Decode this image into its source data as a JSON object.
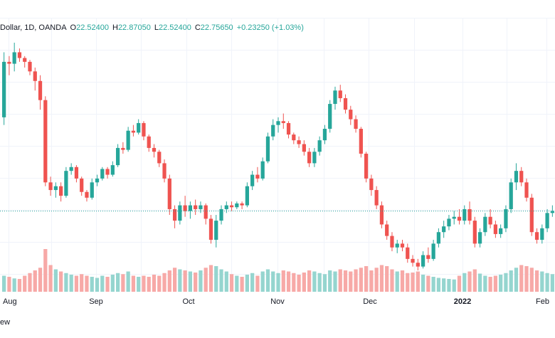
{
  "legend": {
    "symbol": "Dollar, 1D, OANDA",
    "o_label": "O",
    "o_value": "22.52400",
    "h_label": "H",
    "h_value": "22.87050",
    "l_label": "L",
    "l_value": "22.52400",
    "c_label": "C",
    "c_value": "22.75650",
    "change": "+0.23250 (+1.03%)"
  },
  "footer": {
    "text": "ew"
  },
  "colors": {
    "up": "#26a69a",
    "down": "#ef5350",
    "up_volume": "#95d5cf",
    "down_volume": "#f7a9a7",
    "grid": "#f0f3fa"
  },
  "chart_data": {
    "type": "candlestick",
    "interval": "1D",
    "x_axis_labels": [
      "Aug",
      "Sep",
      "Oct",
      "Nov",
      "Dec",
      "2022",
      "Feb"
    ],
    "current_price_line": true,
    "volume_panel": true,
    "grid": true,
    "legend_position": "top-left",
    "candles": [
      [
        96,
        130,
        92,
        125,
        30
      ],
      [
        125,
        128,
        118,
        124,
        28
      ],
      [
        124,
        135,
        120,
        130,
        25
      ],
      [
        130,
        132,
        125,
        127,
        24
      ],
      [
        127,
        128,
        122,
        125,
        30
      ],
      [
        125,
        126,
        118,
        120,
        35
      ],
      [
        120,
        122,
        110,
        115,
        40
      ],
      [
        115,
        118,
        100,
        105,
        45
      ],
      [
        105,
        107,
        60,
        62,
        80
      ],
      [
        62,
        65,
        55,
        58,
        50
      ],
      [
        58,
        62,
        54,
        60,
        42
      ],
      [
        60,
        62,
        52,
        55,
        38
      ],
      [
        55,
        70,
        54,
        68,
        35
      ],
      [
        68,
        72,
        66,
        70,
        32
      ],
      [
        70,
        71,
        62,
        64,
        30
      ],
      [
        64,
        65,
        55,
        57,
        33
      ],
      [
        57,
        58,
        52,
        54,
        30
      ],
      [
        54,
        64,
        53,
        62,
        28
      ],
      [
        62,
        66,
        60,
        64,
        26
      ],
      [
        64,
        70,
        63,
        69,
        30
      ],
      [
        69,
        70,
        64,
        66,
        28
      ],
      [
        66,
        73,
        65,
        71,
        32
      ],
      [
        71,
        82,
        70,
        80,
        35
      ],
      [
        80,
        83,
        77,
        79,
        33
      ],
      [
        79,
        91,
        78,
        89,
        38
      ],
      [
        89,
        92,
        86,
        88,
        30
      ],
      [
        88,
        95,
        87,
        93,
        28
      ],
      [
        93,
        94,
        84,
        86,
        30
      ],
      [
        86,
        87,
        78,
        80,
        28
      ],
      [
        80,
        82,
        75,
        78,
        32
      ],
      [
        78,
        79,
        70,
        72,
        30
      ],
      [
        72,
        74,
        62,
        64,
        35
      ],
      [
        64,
        66,
        45,
        48,
        40
      ],
      [
        48,
        50,
        38,
        42,
        45
      ],
      [
        42,
        52,
        40,
        50,
        42
      ],
      [
        50,
        55,
        44,
        47,
        40
      ],
      [
        47,
        52,
        43,
        50,
        38
      ],
      [
        50,
        53,
        45,
        48,
        36
      ],
      [
        48,
        52,
        46,
        50,
        40
      ],
      [
        50,
        51,
        40,
        43,
        45
      ],
      [
        43,
        45,
        30,
        32,
        50
      ],
      [
        32,
        45,
        28,
        42,
        48
      ],
      [
        42,
        50,
        40,
        48,
        42
      ],
      [
        48,
        52,
        46,
        50,
        38
      ],
      [
        50,
        52,
        47,
        49,
        33
      ],
      [
        49,
        52,
        48,
        51,
        30
      ],
      [
        51,
        52,
        48,
        50,
        28
      ],
      [
        50,
        62,
        49,
        60,
        32
      ],
      [
        60,
        68,
        58,
        66,
        35
      ],
      [
        66,
        70,
        62,
        64,
        30
      ],
      [
        64,
        75,
        63,
        73,
        38
      ],
      [
        73,
        88,
        72,
        86,
        42
      ],
      [
        86,
        95,
        84,
        92,
        38
      ],
      [
        92,
        96,
        88,
        94,
        35
      ],
      [
        94,
        98,
        90,
        93,
        40
      ],
      [
        93,
        94,
        85,
        87,
        38
      ],
      [
        87,
        88,
        82,
        84,
        35
      ],
      [
        84,
        86,
        80,
        82,
        32
      ],
      [
        82,
        84,
        76,
        78,
        36
      ],
      [
        78,
        80,
        70,
        72,
        40
      ],
      [
        72,
        80,
        70,
        78,
        38
      ],
      [
        78,
        86,
        76,
        84,
        35
      ],
      [
        84,
        92,
        82,
        90,
        33
      ],
      [
        90,
        105,
        88,
        103,
        40
      ],
      [
        103,
        112,
        100,
        110,
        38
      ],
      [
        110,
        113,
        104,
        106,
        42
      ],
      [
        106,
        108,
        98,
        100,
        40
      ],
      [
        100,
        102,
        92,
        95,
        38
      ],
      [
        95,
        97,
        88,
        90,
        42
      ],
      [
        90,
        91,
        75,
        77,
        45
      ],
      [
        77,
        78,
        62,
        64,
        48
      ],
      [
        64,
        66,
        55,
        58,
        40
      ],
      [
        58,
        60,
        48,
        50,
        45
      ],
      [
        50,
        52,
        38,
        40,
        50
      ],
      [
        40,
        42,
        32,
        34,
        48
      ],
      [
        34,
        36,
        26,
        28,
        42
      ],
      [
        28,
        32,
        25,
        30,
        38
      ],
      [
        30,
        32,
        26,
        28,
        40
      ],
      [
        28,
        30,
        20,
        22,
        35
      ],
      [
        22,
        24,
        18,
        20,
        36
      ],
      [
        20,
        22,
        16,
        18,
        38
      ],
      [
        18,
        26,
        17,
        24,
        32
      ],
      [
        24,
        28,
        20,
        22,
        30
      ],
      [
        22,
        32,
        21,
        30,
        28
      ],
      [
        30,
        38,
        28,
        36,
        26
      ],
      [
        36,
        42,
        33,
        39,
        25
      ],
      [
        39,
        45,
        37,
        43,
        24
      ],
      [
        43,
        47,
        40,
        44,
        23
      ],
      [
        44,
        48,
        40,
        42,
        30
      ],
      [
        42,
        50,
        40,
        48,
        35
      ],
      [
        48,
        52,
        40,
        42,
        38
      ],
      [
        42,
        44,
        28,
        30,
        42
      ],
      [
        30,
        38,
        28,
        36,
        34
      ],
      [
        36,
        46,
        34,
        44,
        30
      ],
      [
        44,
        48,
        38,
        40,
        28
      ],
      [
        40,
        42,
        33,
        35,
        30
      ],
      [
        35,
        40,
        33,
        38,
        32
      ],
      [
        38,
        50,
        36,
        48,
        35
      ],
      [
        48,
        64,
        46,
        62,
        40
      ],
      [
        62,
        72,
        58,
        68,
        45
      ],
      [
        68,
        70,
        60,
        62,
        50
      ],
      [
        62,
        64,
        52,
        54,
        48
      ],
      [
        54,
        56,
        34,
        36,
        45
      ],
      [
        36,
        38,
        30,
        32,
        40
      ],
      [
        32,
        40,
        30,
        38,
        38
      ],
      [
        38,
        48,
        36,
        46,
        35
      ],
      [
        46,
        50,
        44,
        47,
        33
      ]
    ]
  }
}
